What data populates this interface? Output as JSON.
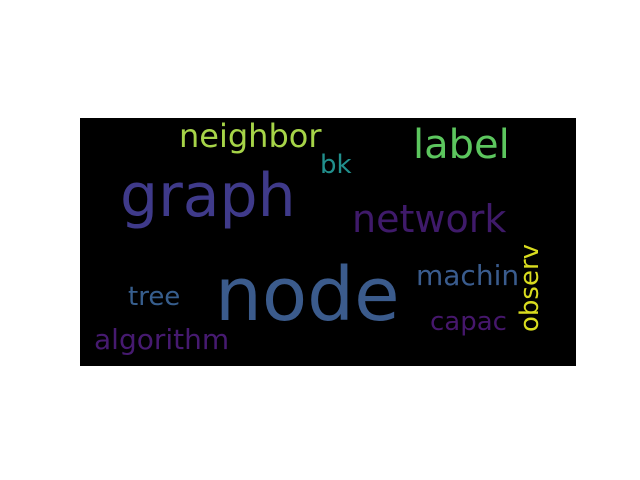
{
  "wordcloud": {
    "background_color": "#000000",
    "words": [
      {
        "id": "node",
        "text": "node",
        "color": "#3b5b8c"
      },
      {
        "id": "graph",
        "text": "graph",
        "color": "#3f3a8a"
      },
      {
        "id": "network",
        "text": "network",
        "color": "#3f1a6a"
      },
      {
        "id": "label",
        "text": "label",
        "color": "#5cc65e"
      },
      {
        "id": "neighbor",
        "text": "neighbor",
        "color": "#a6d448"
      },
      {
        "id": "bk",
        "text": "bk",
        "color": "#218f8c"
      },
      {
        "id": "machin",
        "text": "machin",
        "color": "#3a5c8e"
      },
      {
        "id": "tree",
        "text": "tree",
        "color": "#375e8d"
      },
      {
        "id": "capac",
        "text": "capac",
        "color": "#46176c"
      },
      {
        "id": "algorithm",
        "text": "algorithm",
        "color": "#461a70"
      },
      {
        "id": "observ",
        "text": "observ",
        "color": "#d9dc1f"
      }
    ]
  }
}
